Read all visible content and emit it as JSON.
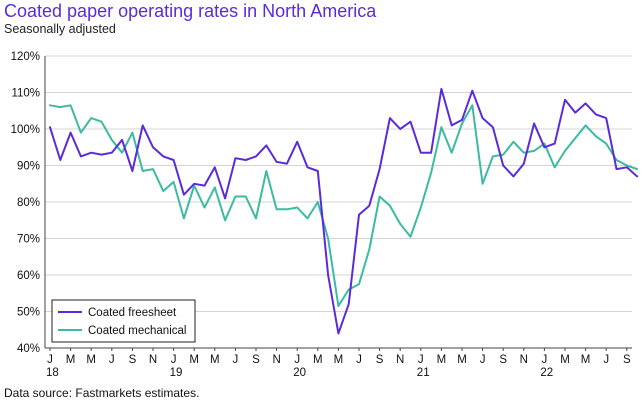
{
  "chart_data": {
    "type": "line",
    "title": "Coated paper operating rates in North America",
    "subtitle": "Seasonally adjusted",
    "source": "Data source: Fastmarkets estimates.",
    "ylim": [
      40,
      120
    ],
    "yticks": [
      40,
      50,
      60,
      70,
      80,
      90,
      100,
      110,
      120
    ],
    "yformat": "percent",
    "grid": "horizontal",
    "legend_position": "bottom-left",
    "month_tick_labels": [
      "J",
      "M",
      "M",
      "J",
      "S",
      "N",
      "J",
      "M",
      "M",
      "J",
      "S",
      "N",
      "J",
      "M",
      "M",
      "J",
      "S",
      "N",
      "J",
      "M",
      "M",
      "J",
      "S",
      "N",
      "J",
      "M",
      "M",
      "J",
      "S"
    ],
    "year_labels": [
      {
        "label": "18",
        "month_index": 0
      },
      {
        "label": "19",
        "month_index": 12
      },
      {
        "label": "20",
        "month_index": 24
      },
      {
        "label": "21",
        "month_index": 36
      },
      {
        "label": "22",
        "month_index": 48
      }
    ],
    "series": [
      {
        "name": "Coated freesheet",
        "color": "#5b2bd9",
        "values": [
          100.5,
          91.5,
          99,
          92.5,
          93.5,
          93,
          93.5,
          97,
          88.5,
          101,
          95,
          92.5,
          91.5,
          82,
          85,
          84.5,
          89.5,
          81,
          92,
          91.5,
          92.5,
          95.5,
          91,
          90.5,
          96.5,
          89.5,
          88.5,
          60,
          44,
          52,
          76.5,
          79,
          89,
          103,
          100,
          102,
          93.5,
          93.5,
          111,
          101,
          102.5,
          110.5,
          103,
          100.5,
          90,
          87,
          90.5,
          101.5,
          95,
          96,
          108,
          104.5,
          107,
          104,
          103,
          89,
          89.5,
          87
        ]
      },
      {
        "name": "Coated mechanical",
        "color": "#3bbba2",
        "values": [
          106.5,
          106,
          106.5,
          99,
          103,
          102,
          97,
          93.5,
          99,
          88.5,
          89,
          83,
          85.5,
          75.5,
          84.5,
          78.5,
          84,
          75,
          81.5,
          81.5,
          75.5,
          88.5,
          78,
          78,
          78.5,
          75.5,
          80,
          70,
          51.5,
          56,
          57.5,
          67,
          81.5,
          79,
          74,
          70.5,
          78.5,
          88,
          100.5,
          93.5,
          101.5,
          106.5,
          85,
          92.5,
          93,
          96.5,
          93.5,
          94,
          96,
          89.5,
          94,
          97.5,
          101,
          98,
          96,
          91.5,
          90,
          89
        ]
      }
    ]
  }
}
